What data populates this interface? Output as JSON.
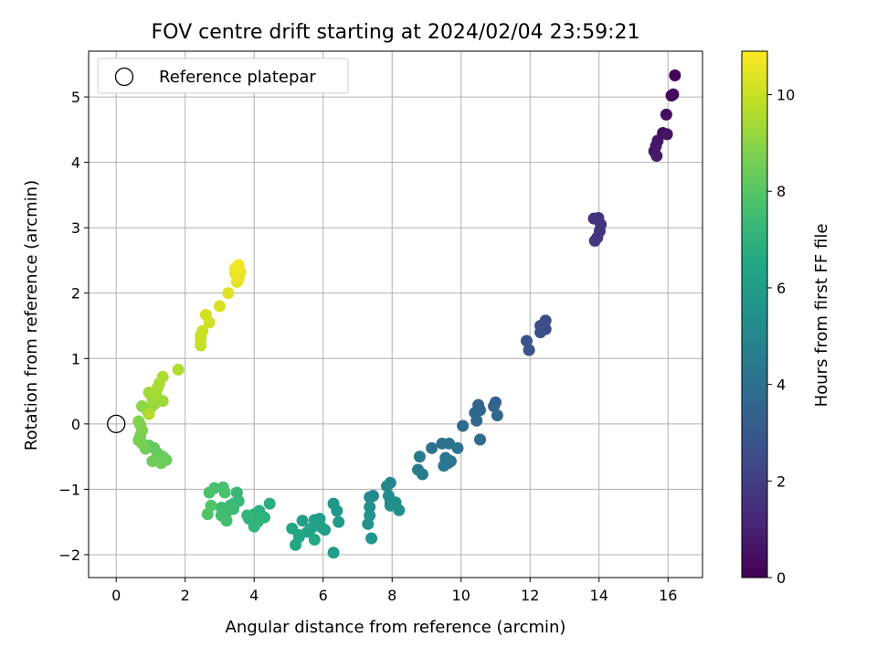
{
  "chart_data": {
    "type": "scatter",
    "title": "FOV centre drift starting at 2024/02/04 23:59:21",
    "xlabel": "Angular distance from reference (arcmin)",
    "ylabel": "Rotation from reference (arcmin)",
    "xlim": [
      -0.8,
      17.0
    ],
    "ylim": [
      -2.35,
      5.7
    ],
    "xticks": [
      0,
      2,
      4,
      6,
      8,
      10,
      12,
      14,
      16
    ],
    "yticks": [
      -2,
      -1,
      0,
      1,
      2,
      3,
      4,
      5
    ],
    "grid": true,
    "legend": {
      "position": "top-left",
      "entries": [
        "Reference platepar"
      ]
    },
    "reference_point": {
      "x": 0,
      "y": 0
    },
    "colorbar": {
      "label": "Hours from first FF file",
      "range": [
        0,
        10.9
      ],
      "ticks": [
        0,
        2,
        4,
        6,
        8,
        10
      ],
      "colormap": "viridis"
    },
    "points": [
      {
        "x": 16.2,
        "y": 5.33,
        "h": 0.1
      },
      {
        "x": 16.15,
        "y": 5.04,
        "h": 0.2
      },
      {
        "x": 16.1,
        "y": 5.02,
        "h": 0.25
      },
      {
        "x": 15.95,
        "y": 4.73,
        "h": 0.4
      },
      {
        "x": 15.85,
        "y": 4.45,
        "h": 0.5
      },
      {
        "x": 15.97,
        "y": 4.43,
        "h": 0.55
      },
      {
        "x": 15.7,
        "y": 4.33,
        "h": 0.6
      },
      {
        "x": 15.65,
        "y": 4.25,
        "h": 0.65
      },
      {
        "x": 15.6,
        "y": 4.17,
        "h": 0.7
      },
      {
        "x": 15.67,
        "y": 4.1,
        "h": 0.75
      },
      {
        "x": 13.85,
        "y": 3.14,
        "h": 1.5
      },
      {
        "x": 13.98,
        "y": 3.15,
        "h": 1.55
      },
      {
        "x": 14.05,
        "y": 3.05,
        "h": 1.6
      },
      {
        "x": 14.02,
        "y": 2.95,
        "h": 1.65
      },
      {
        "x": 13.95,
        "y": 2.85,
        "h": 1.7
      },
      {
        "x": 13.88,
        "y": 2.8,
        "h": 1.75
      },
      {
        "x": 12.45,
        "y": 1.58,
        "h": 2.5
      },
      {
        "x": 12.3,
        "y": 1.5,
        "h": 2.55
      },
      {
        "x": 12.45,
        "y": 1.45,
        "h": 2.6
      },
      {
        "x": 12.3,
        "y": 1.4,
        "h": 2.65
      },
      {
        "x": 11.9,
        "y": 1.27,
        "h": 2.75
      },
      {
        "x": 11.97,
        "y": 1.13,
        "h": 2.8
      },
      {
        "x": 11.0,
        "y": 0.33,
        "h": 3.4
      },
      {
        "x": 10.95,
        "y": 0.27,
        "h": 3.45
      },
      {
        "x": 10.5,
        "y": 0.29,
        "h": 3.5
      },
      {
        "x": 10.55,
        "y": 0.21,
        "h": 3.55
      },
      {
        "x": 10.4,
        "y": 0.17,
        "h": 3.6
      },
      {
        "x": 11.05,
        "y": 0.13,
        "h": 3.65
      },
      {
        "x": 10.45,
        "y": 0.05,
        "h": 3.7
      },
      {
        "x": 10.05,
        "y": -0.03,
        "h": 3.8
      },
      {
        "x": 10.55,
        "y": -0.24,
        "h": 3.85
      },
      {
        "x": 9.45,
        "y": -0.3,
        "h": 4.0
      },
      {
        "x": 9.65,
        "y": -0.3,
        "h": 4.05
      },
      {
        "x": 9.15,
        "y": -0.37,
        "h": 4.1
      },
      {
        "x": 9.9,
        "y": -0.37,
        "h": 4.15
      },
      {
        "x": 9.55,
        "y": -0.52,
        "h": 4.2
      },
      {
        "x": 9.7,
        "y": -0.57,
        "h": 4.25
      },
      {
        "x": 9.62,
        "y": -0.6,
        "h": 4.3
      },
      {
        "x": 9.5,
        "y": -0.64,
        "h": 4.35
      },
      {
        "x": 8.8,
        "y": -0.5,
        "h": 4.4
      },
      {
        "x": 8.75,
        "y": -0.7,
        "h": 4.45
      },
      {
        "x": 8.88,
        "y": -0.77,
        "h": 4.5
      },
      {
        "x": 7.95,
        "y": -0.9,
        "h": 5.0
      },
      {
        "x": 7.85,
        "y": -0.95,
        "h": 5.05
      },
      {
        "x": 7.45,
        "y": -1.1,
        "h": 5.1
      },
      {
        "x": 7.35,
        "y": -1.12,
        "h": 5.15
      },
      {
        "x": 7.9,
        "y": -1.1,
        "h": 5.2
      },
      {
        "x": 7.95,
        "y": -1.2,
        "h": 5.25
      },
      {
        "x": 8.1,
        "y": -1.2,
        "h": 5.3
      },
      {
        "x": 7.95,
        "y": -1.25,
        "h": 5.35
      },
      {
        "x": 8.2,
        "y": -1.32,
        "h": 5.4
      },
      {
        "x": 7.35,
        "y": -1.27,
        "h": 5.45
      },
      {
        "x": 7.35,
        "y": -1.4,
        "h": 5.5
      },
      {
        "x": 7.3,
        "y": -1.53,
        "h": 5.55
      },
      {
        "x": 7.4,
        "y": -1.75,
        "h": 5.6
      },
      {
        "x": 6.3,
        "y": -1.22,
        "h": 5.8
      },
      {
        "x": 6.4,
        "y": -1.33,
        "h": 5.85
      },
      {
        "x": 6.45,
        "y": -1.5,
        "h": 5.9
      },
      {
        "x": 6.3,
        "y": -1.97,
        "h": 5.95
      },
      {
        "x": 5.9,
        "y": -1.45,
        "h": 6.0
      },
      {
        "x": 5.75,
        "y": -1.47,
        "h": 6.05
      },
      {
        "x": 5.4,
        "y": -1.48,
        "h": 6.1
      },
      {
        "x": 5.95,
        "y": -1.58,
        "h": 6.15
      },
      {
        "x": 6.05,
        "y": -1.62,
        "h": 6.2
      },
      {
        "x": 5.65,
        "y": -1.6,
        "h": 6.25
      },
      {
        "x": 5.55,
        "y": -1.65,
        "h": 6.3
      },
      {
        "x": 5.3,
        "y": -1.7,
        "h": 6.35
      },
      {
        "x": 5.1,
        "y": -1.6,
        "h": 6.4
      },
      {
        "x": 5.3,
        "y": -1.73,
        "h": 6.45
      },
      {
        "x": 5.75,
        "y": -1.77,
        "h": 6.5
      },
      {
        "x": 5.2,
        "y": -1.85,
        "h": 6.55
      },
      {
        "x": 4.45,
        "y": -1.22,
        "h": 6.8
      },
      {
        "x": 4.15,
        "y": -1.33,
        "h": 6.85
      },
      {
        "x": 4.0,
        "y": -1.38,
        "h": 6.9
      },
      {
        "x": 4.3,
        "y": -1.43,
        "h": 6.95
      },
      {
        "x": 3.85,
        "y": -1.45,
        "h": 7.0
      },
      {
        "x": 4.1,
        "y": -1.5,
        "h": 7.05
      },
      {
        "x": 4.0,
        "y": -1.57,
        "h": 7.1
      },
      {
        "x": 3.8,
        "y": -1.4,
        "h": 7.15
      },
      {
        "x": 3.5,
        "y": -1.05,
        "h": 7.2
      },
      {
        "x": 3.55,
        "y": -1.18,
        "h": 7.25
      },
      {
        "x": 3.4,
        "y": -1.22,
        "h": 7.3
      },
      {
        "x": 3.3,
        "y": -1.25,
        "h": 7.35
      },
      {
        "x": 3.4,
        "y": -1.3,
        "h": 7.4
      },
      {
        "x": 3.05,
        "y": -1.28,
        "h": 7.45
      },
      {
        "x": 3.2,
        "y": -1.35,
        "h": 7.5
      },
      {
        "x": 3.05,
        "y": -1.4,
        "h": 7.55
      },
      {
        "x": 3.2,
        "y": -1.48,
        "h": 7.6
      },
      {
        "x": 3.1,
        "y": -0.97,
        "h": 7.65
      },
      {
        "x": 2.85,
        "y": -0.98,
        "h": 7.7
      },
      {
        "x": 3.15,
        "y": -1.05,
        "h": 7.75
      },
      {
        "x": 2.7,
        "y": -1.05,
        "h": 7.8
      },
      {
        "x": 2.75,
        "y": -1.25,
        "h": 7.85
      },
      {
        "x": 2.65,
        "y": -1.38,
        "h": 7.9
      },
      {
        "x": 0.95,
        "y": -0.33,
        "h": 8.2
      },
      {
        "x": 1.1,
        "y": -0.37,
        "h": 8.25
      },
      {
        "x": 1.2,
        "y": -0.45,
        "h": 8.3
      },
      {
        "x": 1.35,
        "y": -0.5,
        "h": 8.35
      },
      {
        "x": 1.45,
        "y": -0.55,
        "h": 8.4
      },
      {
        "x": 1.3,
        "y": -0.6,
        "h": 8.45
      },
      {
        "x": 1.05,
        "y": -0.57,
        "h": 8.5
      },
      {
        "x": 0.85,
        "y": -0.38,
        "h": 8.55
      },
      {
        "x": 0.75,
        "y": -0.3,
        "h": 8.6
      },
      {
        "x": 0.65,
        "y": -0.25,
        "h": 8.65
      },
      {
        "x": 0.7,
        "y": -0.18,
        "h": 8.7
      },
      {
        "x": 0.75,
        "y": -0.1,
        "h": 8.75
      },
      {
        "x": 0.7,
        "y": -0.02,
        "h": 8.8
      },
      {
        "x": 0.65,
        "y": 0.04,
        "h": 8.85
      },
      {
        "x": 0.75,
        "y": 0.27,
        "h": 9.0
      },
      {
        "x": 0.9,
        "y": 0.2,
        "h": 9.05
      },
      {
        "x": 1.0,
        "y": 0.25,
        "h": 9.1
      },
      {
        "x": 1.1,
        "y": 0.3,
        "h": 9.15
      },
      {
        "x": 1.25,
        "y": 0.35,
        "h": 9.2
      },
      {
        "x": 1.35,
        "y": 0.35,
        "h": 9.25
      },
      {
        "x": 1.05,
        "y": 0.37,
        "h": 9.3
      },
      {
        "x": 0.95,
        "y": 0.48,
        "h": 9.35
      },
      {
        "x": 1.15,
        "y": 0.45,
        "h": 9.4
      },
      {
        "x": 1.2,
        "y": 0.55,
        "h": 9.45
      },
      {
        "x": 1.25,
        "y": 0.62,
        "h": 9.5
      },
      {
        "x": 1.35,
        "y": 0.72,
        "h": 9.55
      },
      {
        "x": 1.8,
        "y": 0.83,
        "h": 9.6
      },
      {
        "x": 0.95,
        "y": 0.15,
        "h": 9.65
      },
      {
        "x": 2.45,
        "y": 1.2,
        "h": 9.9
      },
      {
        "x": 2.45,
        "y": 1.3,
        "h": 9.95
      },
      {
        "x": 2.45,
        "y": 1.35,
        "h": 10.0
      },
      {
        "x": 2.5,
        "y": 1.42,
        "h": 10.05
      },
      {
        "x": 2.7,
        "y": 1.55,
        "h": 10.1
      },
      {
        "x": 2.6,
        "y": 1.67,
        "h": 10.15
      },
      {
        "x": 3.0,
        "y": 1.8,
        "h": 10.25
      },
      {
        "x": 3.25,
        "y": 2.0,
        "h": 10.35
      },
      {
        "x": 3.5,
        "y": 2.17,
        "h": 10.45
      },
      {
        "x": 3.55,
        "y": 2.22,
        "h": 10.5
      },
      {
        "x": 3.6,
        "y": 2.32,
        "h": 10.55
      },
      {
        "x": 3.45,
        "y": 2.3,
        "h": 10.6
      },
      {
        "x": 3.45,
        "y": 2.38,
        "h": 10.65
      },
      {
        "x": 3.55,
        "y": 2.43,
        "h": 10.7
      }
    ]
  }
}
